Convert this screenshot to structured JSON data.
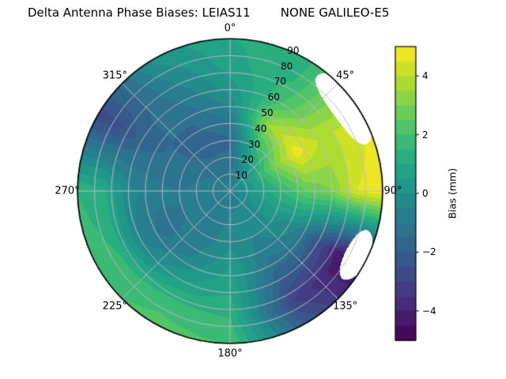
{
  "chart_data": {
    "type": "polar_contour",
    "title": "Delta Antenna Phase Biases: LEIAS11        NONE GALILEO-E5",
    "azimuth_labels": [
      "0°",
      "45°",
      "90°",
      "135°",
      "180°",
      "225°",
      "270°",
      "315°"
    ],
    "azimuth_angles_deg": [
      0,
      45,
      90,
      135,
      180,
      225,
      270,
      315
    ],
    "radial_tick_values": [
      10,
      20,
      30,
      40,
      50,
      60,
      70,
      80,
      90
    ],
    "radial_label_azimuth_deg": 22.5,
    "grid": {
      "azimuths_deg": [
        0,
        30,
        60,
        90,
        120,
        150,
        180,
        210,
        240,
        270,
        300,
        330
      ],
      "radial_deg": [
        0,
        15,
        30,
        45,
        60,
        75,
        90
      ],
      "bias_mm": [
        [
          -0.8,
          -0.8,
          -0.8,
          -0.8,
          -0.8,
          -0.8,
          -0.8,
          -0.8,
          -0.8,
          -0.8,
          -0.8,
          -0.8
        ],
        [
          -1.3,
          0.0,
          0.8,
          0.5,
          0.0,
          -0.3,
          -0.5,
          -0.7,
          -0.8,
          -0.8,
          -1.0,
          -1.2
        ],
        [
          -1.6,
          1.5,
          3.0,
          1.5,
          0.2,
          -0.5,
          -0.2,
          -0.8,
          -1.0,
          -1.0,
          -1.4,
          -1.8
        ],
        [
          -0.8,
          3.5,
          4.8,
          2.5,
          -0.5,
          -1.0,
          0.5,
          -0.5,
          -1.2,
          -0.8,
          -1.5,
          -1.5
        ],
        [
          0.2,
          2.0,
          4.0,
          3.0,
          -2.5,
          -2.0,
          1.0,
          0.5,
          -0.5,
          -0.3,
          -1.8,
          -1.0
        ],
        [
          0.8,
          1.5,
          4.0,
          4.5,
          -4.5,
          -3.0,
          1.5,
          1.8,
          1.5,
          1.2,
          -2.6,
          -0.5
        ],
        [
          1.0,
          1.2,
          4.5,
          5.0,
          -4.8,
          -2.0,
          2.0,
          2.2,
          1.8,
          1.5,
          -2.8,
          0.2
        ]
      ]
    },
    "mask_regions": [
      {
        "azimuth_deg": 54,
        "radial_deg": 85,
        "azimuth_halfwidth_deg": 17,
        "radial_halfwidth_deg": 9
      },
      {
        "azimuth_deg": 117,
        "radial_deg": 84,
        "azimuth_halfwidth_deg": 11,
        "radial_halfwidth_deg": 7
      }
    ],
    "colorbar": {
      "label": "Bias (mm)",
      "ticks": [
        {
          "value": 4,
          "label": "4"
        },
        {
          "value": 2,
          "label": "2"
        },
        {
          "value": 0,
          "label": "0"
        },
        {
          "value": -2,
          "label": "−2"
        },
        {
          "value": -4,
          "label": "−4"
        }
      ],
      "vmin": -5,
      "vmax": 5,
      "level_step": 0.5
    },
    "colormap": {
      "name": "viridis",
      "stops": [
        "#440154",
        "#482475",
        "#414487",
        "#355f8d",
        "#2a788e",
        "#21918c",
        "#22a884",
        "#44bf70",
        "#7ad151",
        "#bddf26",
        "#fde725"
      ]
    },
    "grid_color": "#b9b9c9",
    "rim_color": "#000000",
    "background": "#ffffff"
  }
}
